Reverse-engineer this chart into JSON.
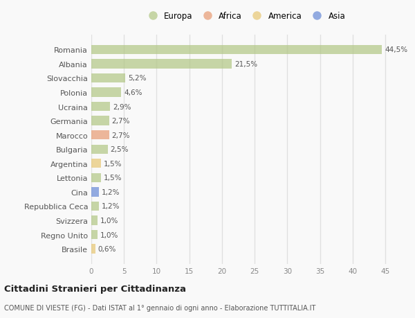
{
  "countries": [
    "Romania",
    "Albania",
    "Slovacchia",
    "Polonia",
    "Ucraina",
    "Germania",
    "Marocco",
    "Bulgaria",
    "Argentina",
    "Lettonia",
    "Cina",
    "Repubblica Ceca",
    "Svizzera",
    "Regno Unito",
    "Brasile"
  ],
  "values": [
    44.5,
    21.5,
    5.2,
    4.6,
    2.9,
    2.7,
    2.7,
    2.5,
    1.5,
    1.5,
    1.2,
    1.2,
    1.0,
    1.0,
    0.6
  ],
  "labels": [
    "44,5%",
    "21,5%",
    "5,2%",
    "4,6%",
    "2,9%",
    "2,7%",
    "2,7%",
    "2,5%",
    "1,5%",
    "1,5%",
    "1,2%",
    "1,2%",
    "1,0%",
    "1,0%",
    "0,6%"
  ],
  "colors": [
    "#b5c98a",
    "#b5c98a",
    "#b5c98a",
    "#b5c98a",
    "#b5c98a",
    "#b5c98a",
    "#e8a07a",
    "#b5c98a",
    "#e8c97a",
    "#b5c98a",
    "#7090d8",
    "#b5c98a",
    "#b5c98a",
    "#b5c98a",
    "#e8c97a"
  ],
  "legend": [
    {
      "label": "Europa",
      "color": "#b5c98a"
    },
    {
      "label": "Africa",
      "color": "#e8a07a"
    },
    {
      "label": "America",
      "color": "#e8c97a"
    },
    {
      "label": "Asia",
      "color": "#7090d8"
    }
  ],
  "xlim": [
    0,
    47
  ],
  "xticks": [
    0,
    5,
    10,
    15,
    20,
    25,
    30,
    35,
    40,
    45
  ],
  "title": "Cittadini Stranieri per Cittadinanza",
  "subtitle": "COMUNE DI VIESTE (FG) - Dati ISTAT al 1° gennaio di ogni anno - Elaborazione TUTTITALIA.IT",
  "background_color": "#f9f9f9",
  "grid_color": "#e0e0e0",
  "bar_alpha": 0.75,
  "bar_height": 0.65
}
